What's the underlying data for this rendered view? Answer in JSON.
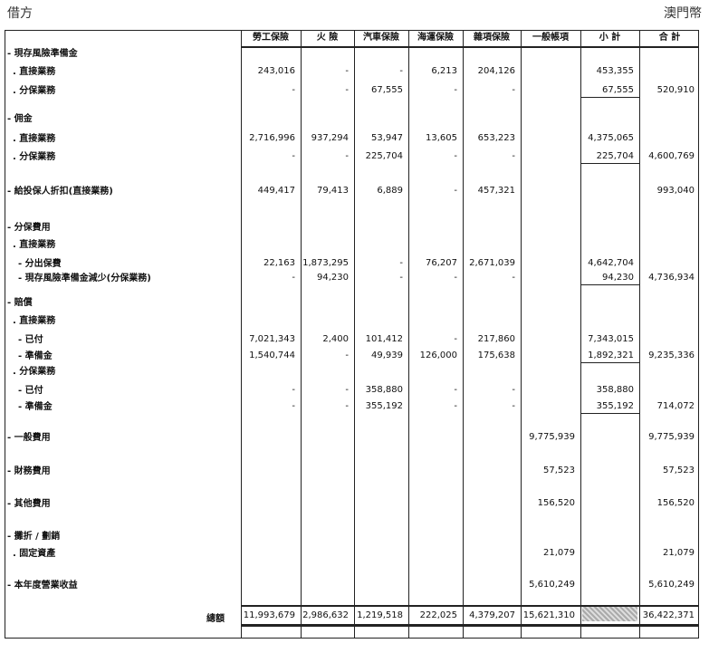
{
  "header": {
    "left": "借方",
    "right": "澳門幣"
  },
  "columns": [
    "勞工保險",
    "火 險",
    "汽車保險",
    "海運保險",
    "雜項保險",
    "一般帳項",
    "小 計",
    "合 計"
  ],
  "rows": [
    {
      "label": "- 現存風險準備金",
      "values": [
        "",
        "",
        "",
        "",
        "",
        "",
        "",
        ""
      ]
    },
    {
      "label": "  . 直接業務",
      "values": [
        "243,016",
        "-",
        "-",
        "6,213",
        "204,126",
        "",
        "453,355",
        ""
      ]
    },
    {
      "label": "  . 分保業務",
      "values": [
        "-",
        "-",
        "67,555",
        "-",
        "-",
        "",
        "67,555",
        "520,910"
      ]
    },
    {
      "label": "- 佣金",
      "values": [
        "",
        "",
        "",
        "",
        "",
        "",
        "",
        ""
      ]
    },
    {
      "label": "  . 直接業務",
      "values": [
        "2,716,996",
        "937,294",
        "53,947",
        "13,605",
        "653,223",
        "",
        "4,375,065",
        ""
      ]
    },
    {
      "label": "  . 分保業務",
      "values": [
        "-",
        "-",
        "225,704",
        "-",
        "-",
        "",
        "225,704",
        "4,600,769"
      ]
    },
    {
      "label": "- 給投保人折扣(直接業務)",
      "values": [
        "449,417",
        "79,413",
        "6,889",
        "-",
        "457,321",
        "",
        "",
        "993,040"
      ]
    },
    {
      "label": "- 分保費用",
      "values": [
        "",
        "",
        "",
        "",
        "",
        "",
        "",
        ""
      ]
    },
    {
      "label": "  . 直接業務",
      "values": [
        "",
        "",
        "",
        "",
        "",
        "",
        "",
        ""
      ]
    },
    {
      "label": "    - 分出保費",
      "values": [
        "22,163",
        "1,873,295",
        "-",
        "76,207",
        "2,671,039",
        "",
        "4,642,704",
        ""
      ]
    },
    {
      "label": "    - 現存風險準備金減少(分保業務)",
      "values": [
        "-",
        "94,230",
        "-",
        "-",
        "-",
        "",
        "94,230",
        "4,736,934"
      ]
    },
    {
      "label": "- 賠償",
      "values": [
        "",
        "",
        "",
        "",
        "",
        "",
        "",
        ""
      ]
    },
    {
      "label": "  . 直接業務",
      "values": [
        "",
        "",
        "",
        "",
        "",
        "",
        "",
        ""
      ]
    },
    {
      "label": "    - 已付",
      "values": [
        "7,021,343",
        "2,400",
        "101,412",
        "-",
        "217,860",
        "",
        "7,343,015",
        ""
      ]
    },
    {
      "label": "    - 準備金",
      "values": [
        "1,540,744",
        "-",
        "49,939",
        "126,000",
        "175,638",
        "",
        "1,892,321",
        "9,235,336"
      ]
    },
    {
      "label": "  . 分保業務",
      "values": [
        "",
        "",
        "",
        "",
        "",
        "",
        "",
        ""
      ]
    },
    {
      "label": "    - 已付",
      "values": [
        "-",
        "-",
        "358,880",
        "-",
        "-",
        "",
        "358,880",
        ""
      ]
    },
    {
      "label": "    - 準備金",
      "values": [
        "-",
        "-",
        "355,192",
        "-",
        "-",
        "",
        "355,192",
        "714,072"
      ]
    },
    {
      "label": "- 一般費用",
      "values": [
        "",
        "",
        "",
        "",
        "",
        "9,775,939",
        "",
        "9,775,939"
      ]
    },
    {
      "label": "- 財務費用",
      "values": [
        "",
        "",
        "",
        "",
        "",
        "57,523",
        "",
        "57,523"
      ]
    },
    {
      "label": "- 其他費用",
      "values": [
        "",
        "",
        "",
        "",
        "",
        "156,520",
        "",
        "156,520"
      ]
    },
    {
      "label": "- 攤折 / 劃銷",
      "values": [
        "",
        "",
        "",
        "",
        "",
        "",
        "",
        ""
      ]
    },
    {
      "label": "  . 固定資產",
      "values": [
        "",
        "",
        "",
        "",
        "",
        "21,079",
        "",
        "21,079"
      ]
    },
    {
      "label": "- 本年度營業收益",
      "values": [
        "",
        "",
        "",
        "",
        "",
        "5,610,249",
        "",
        "5,610,249"
      ]
    }
  ],
  "total": {
    "label": "總額",
    "values": [
      "11,993,679",
      "2,986,632",
      "1,219,518",
      "222,025",
      "4,379,207",
      "15,621,310",
      "",
      "36,422,371"
    ]
  }
}
